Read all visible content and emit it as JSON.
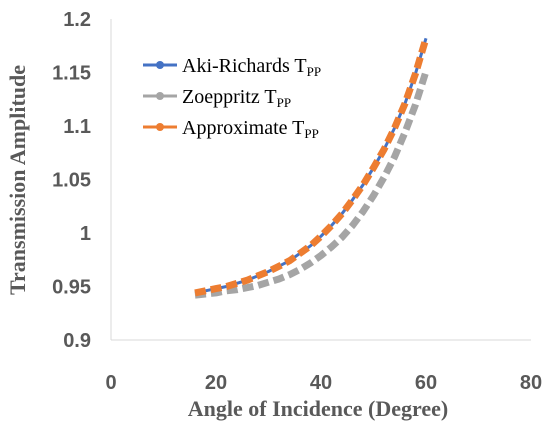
{
  "chart_data": {
    "type": "line",
    "title": "",
    "xlabel": "Angle of Incidence (Degree)",
    "ylabel": "Transmission Amplitude",
    "xlim": [
      0,
      80
    ],
    "ylim": [
      0.9,
      1.2
    ],
    "x_ticks": [
      0,
      20,
      40,
      60,
      80
    ],
    "y_ticks": [
      0.9,
      0.95,
      1.0,
      1.05,
      1.1,
      1.15,
      1.2
    ],
    "x_tick_labels": [
      "0",
      "20",
      "40",
      "60",
      "80"
    ],
    "y_tick_labels": [
      "0.9",
      "0.95",
      "1",
      "1.05",
      "1.1",
      "1.15",
      "1.2"
    ],
    "grid": false,
    "legend_position": "top-left",
    "x": [
      16,
      18,
      20,
      22,
      24,
      26,
      28,
      30,
      32,
      34,
      36,
      38,
      40,
      42,
      44,
      46,
      48,
      50,
      52,
      54,
      56,
      58,
      60
    ],
    "series": [
      {
        "name": "Aki-Richards T",
        "name_sub": "PP",
        "color": "#4472C4",
        "style": "solid",
        "values": [
          0.944,
          0.946,
          0.948,
          0.95,
          0.953,
          0.956,
          0.96,
          0.964,
          0.969,
          0.974,
          0.981,
          0.988,
          0.997,
          1.007,
          1.018,
          1.031,
          1.045,
          1.061,
          1.078,
          1.098,
          1.121,
          1.149,
          1.182
        ]
      },
      {
        "name": "Zoeppritz T",
        "name_sub": "PP",
        "color": "#A5A5A5",
        "style": "dashed",
        "values": [
          0.942,
          0.943,
          0.944,
          0.946,
          0.947,
          0.949,
          0.951,
          0.954,
          0.957,
          0.961,
          0.966,
          0.972,
          0.979,
          0.987,
          0.996,
          1.007,
          1.02,
          1.035,
          1.052,
          1.071,
          1.094,
          1.12,
          1.151
        ]
      },
      {
        "name": "Approximate T",
        "name_sub": "PP",
        "color": "#ED7D31",
        "style": "dashed",
        "values": [
          0.944,
          0.946,
          0.948,
          0.95,
          0.953,
          0.956,
          0.96,
          0.964,
          0.969,
          0.974,
          0.981,
          0.988,
          0.997,
          1.007,
          1.018,
          1.031,
          1.045,
          1.061,
          1.078,
          1.098,
          1.121,
          1.149,
          1.182
        ]
      }
    ]
  }
}
